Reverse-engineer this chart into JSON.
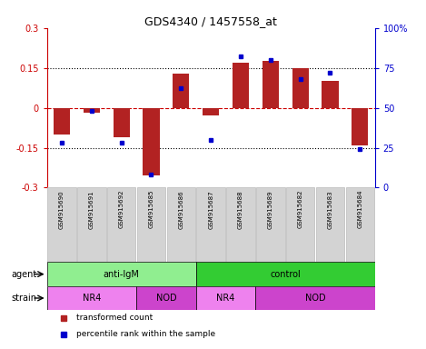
{
  "title": "GDS4340 / 1457558_at",
  "samples": [
    "GSM915690",
    "GSM915691",
    "GSM915692",
    "GSM915685",
    "GSM915686",
    "GSM915687",
    "GSM915688",
    "GSM915689",
    "GSM915682",
    "GSM915683",
    "GSM915684"
  ],
  "bar_values": [
    -0.1,
    -0.02,
    -0.11,
    -0.255,
    0.13,
    -0.03,
    0.17,
    0.175,
    0.15,
    0.1,
    -0.14
  ],
  "percentile_values": [
    28,
    48,
    28,
    8,
    62,
    30,
    82,
    80,
    68,
    72,
    24
  ],
  "bar_color": "#b22222",
  "dot_color": "#0000cd",
  "ylim_left": [
    -0.3,
    0.3
  ],
  "ylim_right": [
    0,
    100
  ],
  "yticks_left": [
    -0.3,
    -0.15,
    0,
    0.15,
    0.3
  ],
  "yticks_right": [
    0,
    25,
    50,
    75,
    100
  ],
  "ytick_labels_right": [
    "0",
    "25",
    "50",
    "75",
    "100%"
  ],
  "hlines": [
    -0.15,
    0.0,
    0.15
  ],
  "hline_styles": [
    "dotted",
    "dashed",
    "dotted"
  ],
  "agent_groups": [
    {
      "label": "anti-IgM",
      "start": 0,
      "end": 5,
      "color": "#90ee90"
    },
    {
      "label": "control",
      "start": 5,
      "end": 11,
      "color": "#33cc33"
    }
  ],
  "strain_groups": [
    {
      "label": "NR4",
      "start": 0,
      "end": 3,
      "color": "#ee82ee"
    },
    {
      "label": "NOD",
      "start": 3,
      "end": 5,
      "color": "#cc44cc"
    },
    {
      "label": "NR4",
      "start": 5,
      "end": 7,
      "color": "#ee82ee"
    },
    {
      "label": "NOD",
      "start": 7,
      "end": 11,
      "color": "#cc44cc"
    }
  ],
  "agent_label": "agent",
  "strain_label": "strain",
  "legend_red": "transformed count",
  "legend_blue": "percentile rank within the sample",
  "bar_width": 0.55,
  "bg_color": "#ffffff",
  "plot_bg": "#ffffff",
  "tick_label_color_left": "#cc0000",
  "tick_label_color_right": "#0000cd",
  "zero_line_color": "#cc0000",
  "dotted_line_color": "#000000",
  "sample_box_color": "#d3d3d3",
  "sample_box_edge": "#bbbbbb"
}
